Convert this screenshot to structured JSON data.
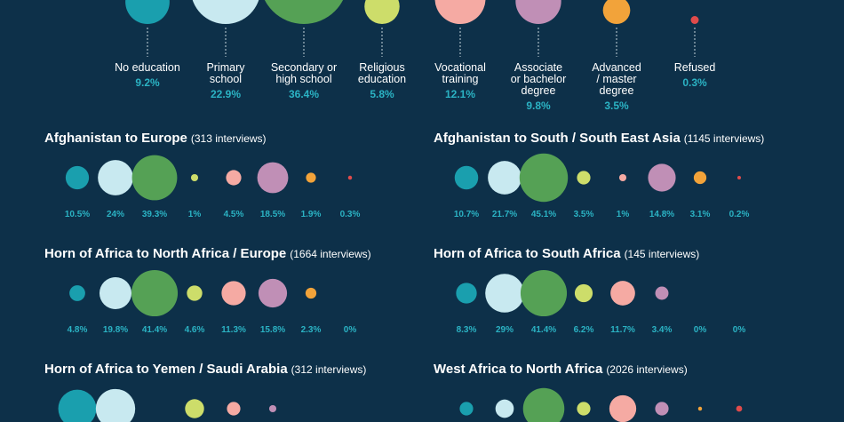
{
  "colors": {
    "background": "#0d3049",
    "percent_text": "#2bb3c4",
    "categories": [
      "#1a9fae",
      "#c8e9f0",
      "#55a155",
      "#cddd6a",
      "#f5aaa3",
      "#c08fb6",
      "#f2a33a",
      "#e04b4b"
    ]
  },
  "chart_data": {
    "type": "bubble",
    "categories": [
      "No education",
      "Primary school",
      "Secondary or high school",
      "Religious education",
      "Vocational training",
      "Associate or bachelor degree",
      "Advanced / master degree",
      "Refused"
    ],
    "overall": {
      "label_lines": [
        [
          "No education"
        ],
        [
          "Primary",
          "school"
        ],
        [
          "Secondary or",
          "high school"
        ],
        [
          "Religious",
          "education"
        ],
        [
          "Vocational",
          "training"
        ],
        [
          "Associate",
          "or bachelor",
          "degree"
        ],
        [
          "Advanced",
          "/ master",
          "degree"
        ],
        [
          "Refused"
        ]
      ],
      "values": [
        9.2,
        22.9,
        36.4,
        5.8,
        12.1,
        9.8,
        3.5,
        0.3
      ],
      "value_labels": [
        "9.2%",
        "22.9%",
        "36.4%",
        "5.8%",
        "12.1%",
        "9.8%",
        "3.5%",
        "0.3%"
      ]
    },
    "panels": [
      {
        "title": "Afghanistan to Europe",
        "subtitle": "(313 interviews)",
        "values": [
          10.5,
          24,
          39.3,
          1,
          4.5,
          18.5,
          1.9,
          0.3
        ],
        "value_labels": [
          "10.5%",
          "24%",
          "39.3%",
          "1%",
          "4.5%",
          "18.5%",
          "1.9%",
          "0.3%"
        ]
      },
      {
        "title": "Afghanistan to South / South East Asia",
        "subtitle": "(1145 interviews)",
        "values": [
          10.7,
          21.7,
          45.1,
          3.5,
          1,
          14.8,
          3.1,
          0.2
        ],
        "value_labels": [
          "10.7%",
          "21.7%",
          "45.1%",
          "3.5%",
          "1%",
          "14.8%",
          "3.1%",
          "0.2%"
        ]
      },
      {
        "title": "Horn of Africa to North Africa / Europe",
        "subtitle": "(1664 interviews)",
        "values": [
          4.8,
          19.8,
          41.4,
          4.6,
          11.3,
          15.8,
          2.3,
          0
        ],
        "value_labels": [
          "4.8%",
          "19.8%",
          "41.4%",
          "4.6%",
          "11.3%",
          "15.8%",
          "2.3%",
          "0%"
        ]
      },
      {
        "title": "Horn of Africa to South Africa",
        "subtitle": "(145 interviews)",
        "values": [
          8.3,
          29,
          41.4,
          6.2,
          11.7,
          3.4,
          0,
          0
        ],
        "value_labels": [
          "8.3%",
          "29%",
          "41.4%",
          "6.2%",
          "11.7%",
          "3.4%",
          "0%",
          "0%"
        ]
      },
      {
        "title": "Horn of Africa to Yemen / Saudi Arabia",
        "subtitle": "(312 interviews)",
        "values": [
          28,
          30,
          0,
          7,
          3.5,
          1,
          0,
          0
        ],
        "value_labels": []
      },
      {
        "title": "West Africa to North Africa",
        "subtitle": "(2026 interviews)",
        "values": [
          3.5,
          6.5,
          33,
          3.5,
          14,
          3.5,
          0.3,
          0.7
        ],
        "value_labels": []
      }
    ]
  }
}
